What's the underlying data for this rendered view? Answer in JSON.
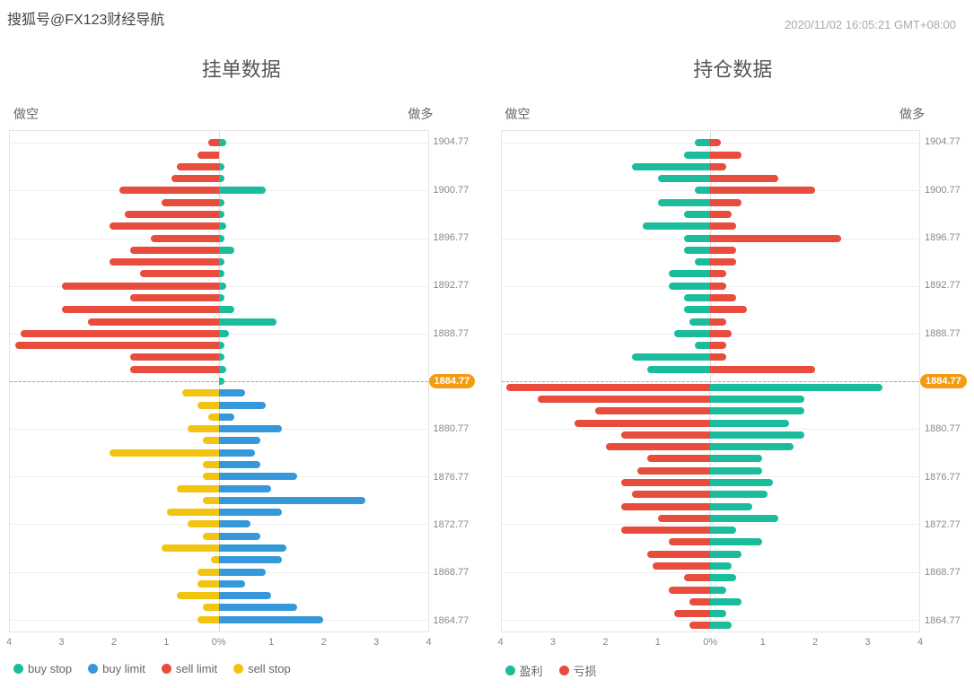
{
  "watermark": "搜狐号@FX123财经导航",
  "timestamp": "2020/11/02 16:05:21 GMT+08:00",
  "current_price": 1884.77,
  "current_price_label": "1884.77",
  "y_axis": {
    "ticks": [
      1904.77,
      1900.77,
      1896.77,
      1892.77,
      1888.77,
      1884.77,
      1880.77,
      1876.77,
      1872.77,
      1868.77,
      1864.77
    ],
    "min": 1863.77,
    "max": 1905.77
  },
  "x_axis": {
    "ticks": [
      4,
      3,
      2,
      1,
      "0%",
      1,
      2,
      3,
      4
    ],
    "min": -4,
    "max": 4
  },
  "colors": {
    "buy_stop": "#1abc9c",
    "buy_limit": "#3498db",
    "sell_limit": "#e74c3c",
    "sell_stop": "#f1c40f",
    "profit": "#1abc9c",
    "loss": "#e74c3c",
    "current_line": "#f39c12",
    "current_badge": "#f39c12",
    "grid": "#eeeeee",
    "border": "#e5e5e5",
    "text": "#888888"
  },
  "chart1": {
    "title": "挂单数据",
    "label_left": "做空",
    "label_right": "做多",
    "legend": [
      {
        "label": "buy stop",
        "color": "#1abc9c"
      },
      {
        "label": "buy limit",
        "color": "#3498db"
      },
      {
        "label": "sell limit",
        "color": "#e74c3c"
      },
      {
        "label": "sell stop",
        "color": "#f1c40f"
      }
    ],
    "bars": [
      {
        "y": 1904.77,
        "left": 0.2,
        "right": 0.15,
        "lc": "#e74c3c",
        "rc": "#1abc9c"
      },
      {
        "y": 1903.77,
        "left": 0.4,
        "right": 0.0,
        "lc": "#e74c3c",
        "rc": "#1abc9c"
      },
      {
        "y": 1902.77,
        "left": 0.8,
        "right": 0.1,
        "lc": "#e74c3c",
        "rc": "#1abc9c"
      },
      {
        "y": 1901.77,
        "left": 0.9,
        "right": 0.1,
        "lc": "#e74c3c",
        "rc": "#1abc9c"
      },
      {
        "y": 1900.77,
        "left": 1.9,
        "right": 0.9,
        "lc": "#e74c3c",
        "rc": "#1abc9c"
      },
      {
        "y": 1899.77,
        "left": 1.1,
        "right": 0.1,
        "lc": "#e74c3c",
        "rc": "#1abc9c"
      },
      {
        "y": 1898.77,
        "left": 1.8,
        "right": 0.1,
        "lc": "#e74c3c",
        "rc": "#1abc9c"
      },
      {
        "y": 1897.77,
        "left": 2.1,
        "right": 0.15,
        "lc": "#e74c3c",
        "rc": "#1abc9c"
      },
      {
        "y": 1896.77,
        "left": 1.3,
        "right": 0.1,
        "lc": "#e74c3c",
        "rc": "#1abc9c"
      },
      {
        "y": 1895.77,
        "left": 1.7,
        "right": 0.3,
        "lc": "#e74c3c",
        "rc": "#1abc9c"
      },
      {
        "y": 1894.77,
        "left": 2.1,
        "right": 0.1,
        "lc": "#e74c3c",
        "rc": "#1abc9c"
      },
      {
        "y": 1893.77,
        "left": 1.5,
        "right": 0.1,
        "lc": "#e74c3c",
        "rc": "#1abc9c"
      },
      {
        "y": 1892.77,
        "left": 3.0,
        "right": 0.15,
        "lc": "#e74c3c",
        "rc": "#1abc9c"
      },
      {
        "y": 1891.77,
        "left": 1.7,
        "right": 0.1,
        "lc": "#e74c3c",
        "rc": "#1abc9c"
      },
      {
        "y": 1890.77,
        "left": 3.0,
        "right": 0.3,
        "lc": "#e74c3c",
        "rc": "#1abc9c"
      },
      {
        "y": 1889.77,
        "left": 2.5,
        "right": 1.1,
        "lc": "#e74c3c",
        "rc": "#1abc9c"
      },
      {
        "y": 1888.77,
        "left": 3.8,
        "right": 0.2,
        "lc": "#e74c3c",
        "rc": "#1abc9c"
      },
      {
        "y": 1887.77,
        "left": 3.9,
        "right": 0.1,
        "lc": "#e74c3c",
        "rc": "#1abc9c"
      },
      {
        "y": 1886.77,
        "left": 1.7,
        "right": 0.1,
        "lc": "#e74c3c",
        "rc": "#1abc9c"
      },
      {
        "y": 1885.77,
        "left": 1.7,
        "right": 0.15,
        "lc": "#e74c3c",
        "rc": "#1abc9c"
      },
      {
        "y": 1884.77,
        "left": 0.0,
        "right": 0.1,
        "lc": "#e74c3c",
        "rc": "#1abc9c"
      },
      {
        "y": 1883.77,
        "left": 0.7,
        "right": 0.5,
        "lc": "#f1c40f",
        "rc": "#3498db"
      },
      {
        "y": 1882.77,
        "left": 0.4,
        "right": 0.9,
        "lc": "#f1c40f",
        "rc": "#3498db"
      },
      {
        "y": 1881.77,
        "left": 0.2,
        "right": 0.3,
        "lc": "#f1c40f",
        "rc": "#3498db"
      },
      {
        "y": 1880.77,
        "left": 0.6,
        "right": 1.2,
        "lc": "#f1c40f",
        "rc": "#3498db"
      },
      {
        "y": 1879.77,
        "left": 0.3,
        "right": 0.8,
        "lc": "#f1c40f",
        "rc": "#3498db"
      },
      {
        "y": 1878.77,
        "left": 2.1,
        "right": 0.7,
        "lc": "#f1c40f",
        "rc": "#3498db"
      },
      {
        "y": 1877.77,
        "left": 0.3,
        "right": 0.8,
        "lc": "#f1c40f",
        "rc": "#3498db"
      },
      {
        "y": 1876.77,
        "left": 0.3,
        "right": 1.5,
        "lc": "#f1c40f",
        "rc": "#3498db"
      },
      {
        "y": 1875.77,
        "left": 0.8,
        "right": 1.0,
        "lc": "#f1c40f",
        "rc": "#3498db"
      },
      {
        "y": 1874.77,
        "left": 0.3,
        "right": 2.8,
        "lc": "#f1c40f",
        "rc": "#3498db"
      },
      {
        "y": 1873.77,
        "left": 1.0,
        "right": 1.2,
        "lc": "#f1c40f",
        "rc": "#3498db"
      },
      {
        "y": 1872.77,
        "left": 0.6,
        "right": 0.6,
        "lc": "#f1c40f",
        "rc": "#3498db"
      },
      {
        "y": 1871.77,
        "left": 0.3,
        "right": 0.8,
        "lc": "#f1c40f",
        "rc": "#3498db"
      },
      {
        "y": 1870.77,
        "left": 1.1,
        "right": 1.3,
        "lc": "#f1c40f",
        "rc": "#3498db"
      },
      {
        "y": 1869.77,
        "left": 0.15,
        "right": 1.2,
        "lc": "#f1c40f",
        "rc": "#3498db"
      },
      {
        "y": 1868.77,
        "left": 0.4,
        "right": 0.9,
        "lc": "#f1c40f",
        "rc": "#3498db"
      },
      {
        "y": 1867.77,
        "left": 0.4,
        "right": 0.5,
        "lc": "#f1c40f",
        "rc": "#3498db"
      },
      {
        "y": 1866.77,
        "left": 0.8,
        "right": 1.0,
        "lc": "#f1c40f",
        "rc": "#3498db"
      },
      {
        "y": 1865.77,
        "left": 0.3,
        "right": 1.5,
        "lc": "#f1c40f",
        "rc": "#3498db"
      },
      {
        "y": 1864.77,
        "left": 0.4,
        "right": 2.0,
        "lc": "#f1c40f",
        "rc": "#3498db"
      }
    ]
  },
  "chart2": {
    "title": "持仓数据",
    "label_left": "做空",
    "label_right": "做多",
    "legend": [
      {
        "label": "盈利",
        "color": "#1abc9c"
      },
      {
        "label": "亏损",
        "color": "#e74c3c"
      }
    ],
    "bars": [
      {
        "y": 1904.77,
        "left": 0.3,
        "right": 0.2,
        "lc": "#1abc9c",
        "rc": "#e74c3c"
      },
      {
        "y": 1903.77,
        "left": 0.5,
        "right": 0.6,
        "lc": "#1abc9c",
        "rc": "#e74c3c"
      },
      {
        "y": 1902.77,
        "left": 1.5,
        "right": 0.3,
        "lc": "#1abc9c",
        "rc": "#e74c3c"
      },
      {
        "y": 1901.77,
        "left": 1.0,
        "right": 1.3,
        "lc": "#1abc9c",
        "rc": "#e74c3c"
      },
      {
        "y": 1900.77,
        "left": 0.3,
        "right": 2.0,
        "lc": "#1abc9c",
        "rc": "#e74c3c"
      },
      {
        "y": 1899.77,
        "left": 1.0,
        "right": 0.6,
        "lc": "#1abc9c",
        "rc": "#e74c3c"
      },
      {
        "y": 1898.77,
        "left": 0.5,
        "right": 0.4,
        "lc": "#1abc9c",
        "rc": "#e74c3c"
      },
      {
        "y": 1897.77,
        "left": 1.3,
        "right": 0.5,
        "lc": "#1abc9c",
        "rc": "#e74c3c"
      },
      {
        "y": 1896.77,
        "left": 0.5,
        "right": 2.5,
        "lc": "#1abc9c",
        "rc": "#e74c3c"
      },
      {
        "y": 1895.77,
        "left": 0.5,
        "right": 0.5,
        "lc": "#1abc9c",
        "rc": "#e74c3c"
      },
      {
        "y": 1894.77,
        "left": 0.3,
        "right": 0.5,
        "lc": "#1abc9c",
        "rc": "#e74c3c"
      },
      {
        "y": 1893.77,
        "left": 0.8,
        "right": 0.3,
        "lc": "#1abc9c",
        "rc": "#e74c3c"
      },
      {
        "y": 1892.77,
        "left": 0.8,
        "right": 0.3,
        "lc": "#1abc9c",
        "rc": "#e74c3c"
      },
      {
        "y": 1891.77,
        "left": 0.5,
        "right": 0.5,
        "lc": "#1abc9c",
        "rc": "#e74c3c"
      },
      {
        "y": 1890.77,
        "left": 0.5,
        "right": 0.7,
        "lc": "#1abc9c",
        "rc": "#e74c3c"
      },
      {
        "y": 1889.77,
        "left": 0.4,
        "right": 0.3,
        "lc": "#1abc9c",
        "rc": "#e74c3c"
      },
      {
        "y": 1888.77,
        "left": 0.7,
        "right": 0.4,
        "lc": "#1abc9c",
        "rc": "#e74c3c"
      },
      {
        "y": 1887.77,
        "left": 0.3,
        "right": 0.3,
        "lc": "#1abc9c",
        "rc": "#e74c3c"
      },
      {
        "y": 1886.77,
        "left": 1.5,
        "right": 0.3,
        "lc": "#1abc9c",
        "rc": "#e74c3c"
      },
      {
        "y": 1885.77,
        "left": 1.2,
        "right": 2.0,
        "lc": "#1abc9c",
        "rc": "#e74c3c"
      },
      {
        "y": 1884.27,
        "left": 3.9,
        "right": 3.3,
        "lc": "#e74c3c",
        "rc": "#1abc9c"
      },
      {
        "y": 1883.27,
        "left": 3.3,
        "right": 1.8,
        "lc": "#e74c3c",
        "rc": "#1abc9c"
      },
      {
        "y": 1882.27,
        "left": 2.2,
        "right": 1.8,
        "lc": "#e74c3c",
        "rc": "#1abc9c"
      },
      {
        "y": 1881.27,
        "left": 2.6,
        "right": 1.5,
        "lc": "#e74c3c",
        "rc": "#1abc9c"
      },
      {
        "y": 1880.27,
        "left": 1.7,
        "right": 1.8,
        "lc": "#e74c3c",
        "rc": "#1abc9c"
      },
      {
        "y": 1879.27,
        "left": 2.0,
        "right": 1.6,
        "lc": "#e74c3c",
        "rc": "#1abc9c"
      },
      {
        "y": 1878.27,
        "left": 1.2,
        "right": 1.0,
        "lc": "#e74c3c",
        "rc": "#1abc9c"
      },
      {
        "y": 1877.27,
        "left": 1.4,
        "right": 1.0,
        "lc": "#e74c3c",
        "rc": "#1abc9c"
      },
      {
        "y": 1876.27,
        "left": 1.7,
        "right": 1.2,
        "lc": "#e74c3c",
        "rc": "#1abc9c"
      },
      {
        "y": 1875.27,
        "left": 1.5,
        "right": 1.1,
        "lc": "#e74c3c",
        "rc": "#1abc9c"
      },
      {
        "y": 1874.27,
        "left": 1.7,
        "right": 0.8,
        "lc": "#e74c3c",
        "rc": "#1abc9c"
      },
      {
        "y": 1873.27,
        "left": 1.0,
        "right": 1.3,
        "lc": "#e74c3c",
        "rc": "#1abc9c"
      },
      {
        "y": 1872.27,
        "left": 1.7,
        "right": 0.5,
        "lc": "#e74c3c",
        "rc": "#1abc9c"
      },
      {
        "y": 1871.27,
        "left": 0.8,
        "right": 1.0,
        "lc": "#e74c3c",
        "rc": "#1abc9c"
      },
      {
        "y": 1870.27,
        "left": 1.2,
        "right": 0.6,
        "lc": "#e74c3c",
        "rc": "#1abc9c"
      },
      {
        "y": 1869.27,
        "left": 1.1,
        "right": 0.4,
        "lc": "#e74c3c",
        "rc": "#1abc9c"
      },
      {
        "y": 1868.27,
        "left": 0.5,
        "right": 0.5,
        "lc": "#e74c3c",
        "rc": "#1abc9c"
      },
      {
        "y": 1867.27,
        "left": 0.8,
        "right": 0.3,
        "lc": "#e74c3c",
        "rc": "#1abc9c"
      },
      {
        "y": 1866.27,
        "left": 0.4,
        "right": 0.6,
        "lc": "#e74c3c",
        "rc": "#1abc9c"
      },
      {
        "y": 1865.27,
        "left": 0.7,
        "right": 0.3,
        "lc": "#e74c3c",
        "rc": "#1abc9c"
      },
      {
        "y": 1864.27,
        "left": 0.4,
        "right": 0.4,
        "lc": "#e74c3c",
        "rc": "#1abc9c"
      }
    ]
  }
}
